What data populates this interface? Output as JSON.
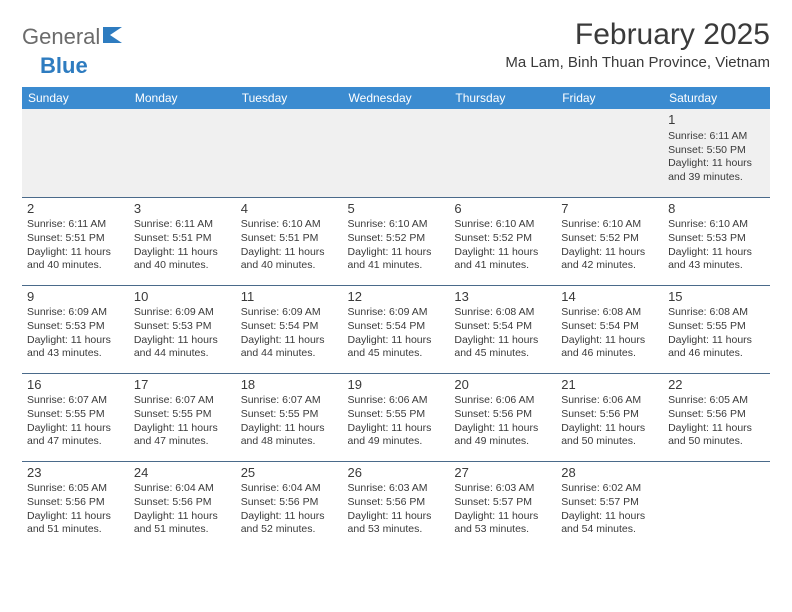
{
  "logo": {
    "part1": "General",
    "part2": "Blue"
  },
  "title": "February 2025",
  "location": "Ma Lam, Binh Thuan Province, Vietnam",
  "dayNames": [
    "Sunday",
    "Monday",
    "Tuesday",
    "Wednesday",
    "Thursday",
    "Friday",
    "Saturday"
  ],
  "colors": {
    "headerBg": "#3b8bd0",
    "headerText": "#ffffff",
    "borderColor": "#4a6a8a",
    "textColor": "#3a3a3a",
    "logoGray": "#6b6b6b",
    "logoBlue": "#2e7cc0",
    "week0Bg": "#f0f0f0"
  },
  "weeks": [
    [
      null,
      null,
      null,
      null,
      null,
      null,
      {
        "d": "1",
        "sr": "6:11 AM",
        "ss": "5:50 PM",
        "dl": "11 hours and 39 minutes."
      }
    ],
    [
      {
        "d": "2",
        "sr": "6:11 AM",
        "ss": "5:51 PM",
        "dl": "11 hours and 40 minutes."
      },
      {
        "d": "3",
        "sr": "6:11 AM",
        "ss": "5:51 PM",
        "dl": "11 hours and 40 minutes."
      },
      {
        "d": "4",
        "sr": "6:10 AM",
        "ss": "5:51 PM",
        "dl": "11 hours and 40 minutes."
      },
      {
        "d": "5",
        "sr": "6:10 AM",
        "ss": "5:52 PM",
        "dl": "11 hours and 41 minutes."
      },
      {
        "d": "6",
        "sr": "6:10 AM",
        "ss": "5:52 PM",
        "dl": "11 hours and 41 minutes."
      },
      {
        "d": "7",
        "sr": "6:10 AM",
        "ss": "5:52 PM",
        "dl": "11 hours and 42 minutes."
      },
      {
        "d": "8",
        "sr": "6:10 AM",
        "ss": "5:53 PM",
        "dl": "11 hours and 43 minutes."
      }
    ],
    [
      {
        "d": "9",
        "sr": "6:09 AM",
        "ss": "5:53 PM",
        "dl": "11 hours and 43 minutes."
      },
      {
        "d": "10",
        "sr": "6:09 AM",
        "ss": "5:53 PM",
        "dl": "11 hours and 44 minutes."
      },
      {
        "d": "11",
        "sr": "6:09 AM",
        "ss": "5:54 PM",
        "dl": "11 hours and 44 minutes."
      },
      {
        "d": "12",
        "sr": "6:09 AM",
        "ss": "5:54 PM",
        "dl": "11 hours and 45 minutes."
      },
      {
        "d": "13",
        "sr": "6:08 AM",
        "ss": "5:54 PM",
        "dl": "11 hours and 45 minutes."
      },
      {
        "d": "14",
        "sr": "6:08 AM",
        "ss": "5:54 PM",
        "dl": "11 hours and 46 minutes."
      },
      {
        "d": "15",
        "sr": "6:08 AM",
        "ss": "5:55 PM",
        "dl": "11 hours and 46 minutes."
      }
    ],
    [
      {
        "d": "16",
        "sr": "6:07 AM",
        "ss": "5:55 PM",
        "dl": "11 hours and 47 minutes."
      },
      {
        "d": "17",
        "sr": "6:07 AM",
        "ss": "5:55 PM",
        "dl": "11 hours and 47 minutes."
      },
      {
        "d": "18",
        "sr": "6:07 AM",
        "ss": "5:55 PM",
        "dl": "11 hours and 48 minutes."
      },
      {
        "d": "19",
        "sr": "6:06 AM",
        "ss": "5:55 PM",
        "dl": "11 hours and 49 minutes."
      },
      {
        "d": "20",
        "sr": "6:06 AM",
        "ss": "5:56 PM",
        "dl": "11 hours and 49 minutes."
      },
      {
        "d": "21",
        "sr": "6:06 AM",
        "ss": "5:56 PM",
        "dl": "11 hours and 50 minutes."
      },
      {
        "d": "22",
        "sr": "6:05 AM",
        "ss": "5:56 PM",
        "dl": "11 hours and 50 minutes."
      }
    ],
    [
      {
        "d": "23",
        "sr": "6:05 AM",
        "ss": "5:56 PM",
        "dl": "11 hours and 51 minutes."
      },
      {
        "d": "24",
        "sr": "6:04 AM",
        "ss": "5:56 PM",
        "dl": "11 hours and 51 minutes."
      },
      {
        "d": "25",
        "sr": "6:04 AM",
        "ss": "5:56 PM",
        "dl": "11 hours and 52 minutes."
      },
      {
        "d": "26",
        "sr": "6:03 AM",
        "ss": "5:56 PM",
        "dl": "11 hours and 53 minutes."
      },
      {
        "d": "27",
        "sr": "6:03 AM",
        "ss": "5:57 PM",
        "dl": "11 hours and 53 minutes."
      },
      {
        "d": "28",
        "sr": "6:02 AM",
        "ss": "5:57 PM",
        "dl": "11 hours and 54 minutes."
      },
      null
    ]
  ],
  "labels": {
    "sunrise": "Sunrise:",
    "sunset": "Sunset:",
    "daylight": "Daylight:"
  }
}
